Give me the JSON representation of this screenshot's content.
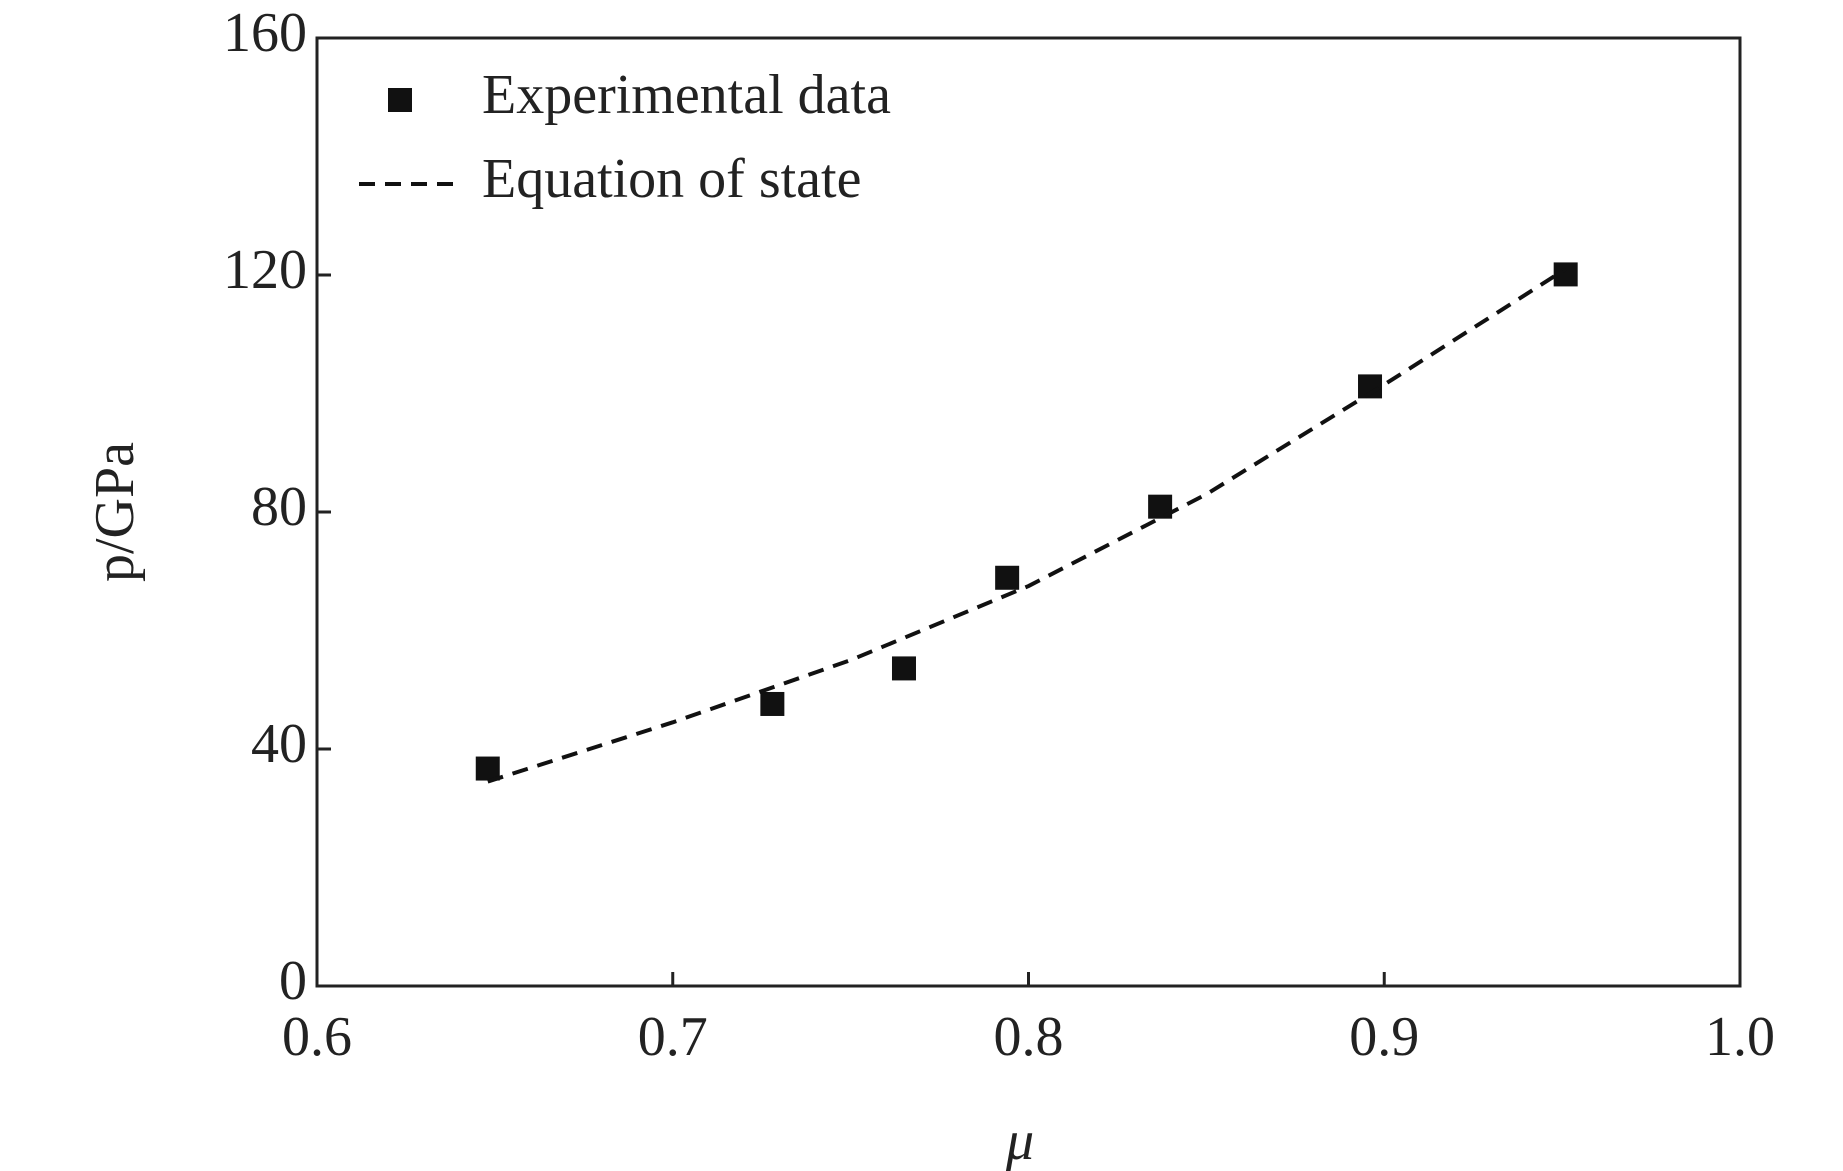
{
  "chart_data": {
    "type": "scatter",
    "xlabel": "μ",
    "ylabel": "p/GPa",
    "xlim": [
      0.6,
      1
    ],
    "xticks": [
      0.6,
      0.7,
      0.8,
      0.9,
      {
        "value": 1,
        "label": "1.0"
      }
    ],
    "ylim": [
      0,
      160
    ],
    "yticks": [
      0,
      40,
      80,
      120,
      160
    ],
    "legend": "upper left",
    "series": [
      {
        "name": "Experimental data",
        "type": "scatter",
        "color": "#111111",
        "x": [
          0.648,
          0.728,
          0.765,
          0.794,
          0.837,
          0.896,
          0.951
        ],
        "values": [
          36.7,
          47.6,
          53.6,
          68.9,
          80.9,
          101.2,
          120.1
        ]
      },
      {
        "name": "Equation of state",
        "type": "line",
        "color": "#111111",
        "x": [
          0.648,
          0.7,
          0.75,
          0.8,
          0.85,
          0.9,
          0.951
        ],
        "values": [
          34.5,
          44.5,
          55,
          67.5,
          83,
          101.5,
          121
        ]
      }
    ]
  }
}
